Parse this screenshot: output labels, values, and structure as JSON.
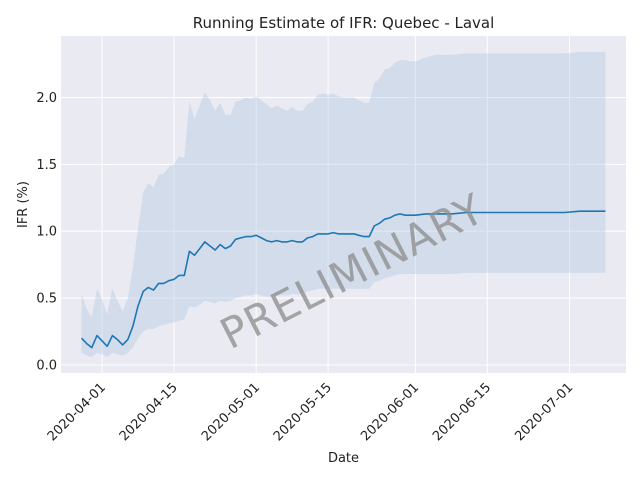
{
  "chart_data": {
    "type": "line",
    "title": "Running Estimate of IFR: Quebec - Laval",
    "xlabel": "Date",
    "ylabel": "IFR (%)",
    "watermark": "PRELIMINARY",
    "xlim": [
      "2020-03-24",
      "2020-07-12"
    ],
    "ylim": [
      -0.06,
      2.46
    ],
    "x_ticks": [
      "2020-04-01",
      "2020-04-15",
      "2020-05-01",
      "2020-05-15",
      "2020-06-01",
      "2020-06-15",
      "2020-07-01"
    ],
    "y_ticks": [
      0.0,
      0.5,
      1.0,
      1.5,
      2.0
    ],
    "y_tick_labels": [
      "0.0",
      "0.5",
      "1.0",
      "1.5",
      "2.0"
    ],
    "grid": true,
    "colors": {
      "background": "#eaeaf2",
      "line": "#1f77b4",
      "band": "#a7c2e0",
      "grid": "#ffffff"
    },
    "series": [
      {
        "x": [
          "2020-03-28",
          "2020-03-29",
          "2020-03-30",
          "2020-03-31",
          "2020-04-01",
          "2020-04-02",
          "2020-04-03",
          "2020-04-04",
          "2020-04-05",
          "2020-04-06",
          "2020-04-07",
          "2020-04-08",
          "2020-04-09",
          "2020-04-10",
          "2020-04-11",
          "2020-04-12",
          "2020-04-13",
          "2020-04-14",
          "2020-04-15",
          "2020-04-16",
          "2020-04-17",
          "2020-04-18",
          "2020-04-19",
          "2020-04-20",
          "2020-04-21",
          "2020-04-22",
          "2020-04-23",
          "2020-04-24",
          "2020-04-25",
          "2020-04-26",
          "2020-04-27",
          "2020-04-28",
          "2020-04-29",
          "2020-04-30",
          "2020-05-01",
          "2020-05-02",
          "2020-05-03",
          "2020-05-04",
          "2020-05-05",
          "2020-05-06",
          "2020-05-07",
          "2020-05-08",
          "2020-05-09",
          "2020-05-10",
          "2020-05-11",
          "2020-05-12",
          "2020-05-13",
          "2020-05-14",
          "2020-05-15",
          "2020-05-16",
          "2020-05-17",
          "2020-05-18",
          "2020-05-19",
          "2020-05-20",
          "2020-05-21",
          "2020-05-22",
          "2020-05-23",
          "2020-05-24",
          "2020-05-25",
          "2020-05-26",
          "2020-05-27",
          "2020-05-28",
          "2020-05-29",
          "2020-05-30",
          "2020-05-31",
          "2020-06-01",
          "2020-06-03",
          "2020-06-05",
          "2020-06-08",
          "2020-06-11",
          "2020-06-15",
          "2020-06-18",
          "2020-06-22",
          "2020-06-26",
          "2020-06-30",
          "2020-07-03",
          "2020-07-08"
        ],
        "y": [
          0.2,
          0.16,
          0.13,
          0.22,
          0.18,
          0.14,
          0.22,
          0.19,
          0.15,
          0.19,
          0.29,
          0.44,
          0.55,
          0.58,
          0.56,
          0.61,
          0.61,
          0.63,
          0.64,
          0.67,
          0.67,
          0.85,
          0.82,
          0.87,
          0.92,
          0.89,
          0.86,
          0.9,
          0.87,
          0.89,
          0.94,
          0.95,
          0.96,
          0.96,
          0.97,
          0.95,
          0.93,
          0.92,
          0.93,
          0.92,
          0.92,
          0.93,
          0.92,
          0.92,
          0.95,
          0.96,
          0.98,
          0.98,
          0.98,
          0.99,
          0.98,
          0.98,
          0.98,
          0.98,
          0.97,
          0.96,
          0.96,
          1.04,
          1.06,
          1.09,
          1.1,
          1.12,
          1.13,
          1.12,
          1.12,
          1.12,
          1.13,
          1.13,
          1.13,
          1.14,
          1.14,
          1.14,
          1.14,
          1.14,
          1.14,
          1.15,
          1.15
        ],
        "lower": [
          0.09,
          0.07,
          0.06,
          0.09,
          0.08,
          0.06,
          0.09,
          0.08,
          0.07,
          0.09,
          0.13,
          0.2,
          0.25,
          0.27,
          0.27,
          0.29,
          0.3,
          0.31,
          0.32,
          0.33,
          0.34,
          0.44,
          0.43,
          0.45,
          0.48,
          0.47,
          0.46,
          0.48,
          0.47,
          0.48,
          0.5,
          0.51,
          0.52,
          0.52,
          0.53,
          0.52,
          0.51,
          0.51,
          0.52,
          0.52,
          0.52,
          0.53,
          0.53,
          0.53,
          0.55,
          0.56,
          0.57,
          0.57,
          0.57,
          0.57,
          0.57,
          0.57,
          0.57,
          0.57,
          0.57,
          0.57,
          0.57,
          0.62,
          0.63,
          0.65,
          0.66,
          0.67,
          0.68,
          0.68,
          0.68,
          0.68,
          0.68,
          0.68,
          0.68,
          0.69,
          0.69,
          0.69,
          0.69,
          0.69,
          0.69,
          0.69,
          0.69
        ],
        "upper": [
          0.53,
          0.42,
          0.36,
          0.57,
          0.49,
          0.38,
          0.57,
          0.48,
          0.4,
          0.5,
          0.73,
          1.02,
          1.29,
          1.36,
          1.33,
          1.42,
          1.43,
          1.48,
          1.5,
          1.56,
          1.55,
          1.97,
          1.84,
          1.94,
          2.04,
          1.98,
          1.9,
          1.96,
          1.87,
          1.87,
          1.97,
          1.98,
          2.0,
          1.99,
          2.01,
          1.98,
          1.95,
          1.92,
          1.94,
          1.92,
          1.9,
          1.93,
          1.9,
          1.9,
          1.95,
          1.97,
          2.02,
          2.03,
          2.02,
          2.03,
          2.01,
          2.0,
          2.0,
          2.0,
          1.98,
          1.96,
          1.96,
          2.11,
          2.14,
          2.21,
          2.22,
          2.26,
          2.28,
          2.28,
          2.27,
          2.27,
          2.3,
          2.32,
          2.32,
          2.33,
          2.33,
          2.33,
          2.33,
          2.33,
          2.33,
          2.34,
          2.34
        ]
      }
    ]
  }
}
